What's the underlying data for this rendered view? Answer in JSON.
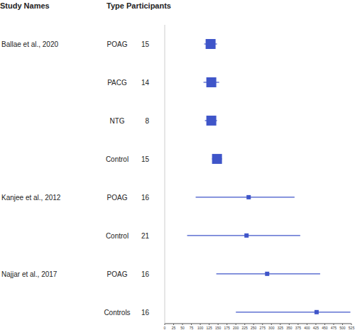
{
  "chart_data": {
    "type": "forest",
    "column_labels": [
      "Study Names",
      "Type",
      "Participants"
    ],
    "studies": [
      "Ballae et al., 2020",
      null,
      null,
      null,
      "Kanjee et al., 2012",
      null,
      "Najjar et al., 2017",
      null
    ],
    "categories": [
      "POAG",
      "PACG",
      "NTG",
      "Control",
      "POAG",
      "Control",
      "POAG",
      "Controls"
    ],
    "participants": [
      15,
      14,
      8,
      15,
      16,
      21,
      16,
      16
    ],
    "values": [
      129,
      131,
      131,
      147,
      236,
      230,
      288,
      427
    ],
    "lower": [
      111,
      109,
      113,
      133,
      87,
      63,
      145,
      200
    ],
    "upper": [
      147,
      153,
      147,
      161,
      365,
      381,
      437,
      522
    ],
    "xlim": [
      0,
      525
    ],
    "xticks": [
      0,
      25,
      50,
      75,
      100,
      125,
      150,
      175,
      200,
      225,
      250,
      275,
      300,
      325,
      350,
      375,
      400,
      425,
      450,
      475,
      500,
      525
    ],
    "color": "#3f55c9",
    "marker": "square",
    "grid": false
  }
}
